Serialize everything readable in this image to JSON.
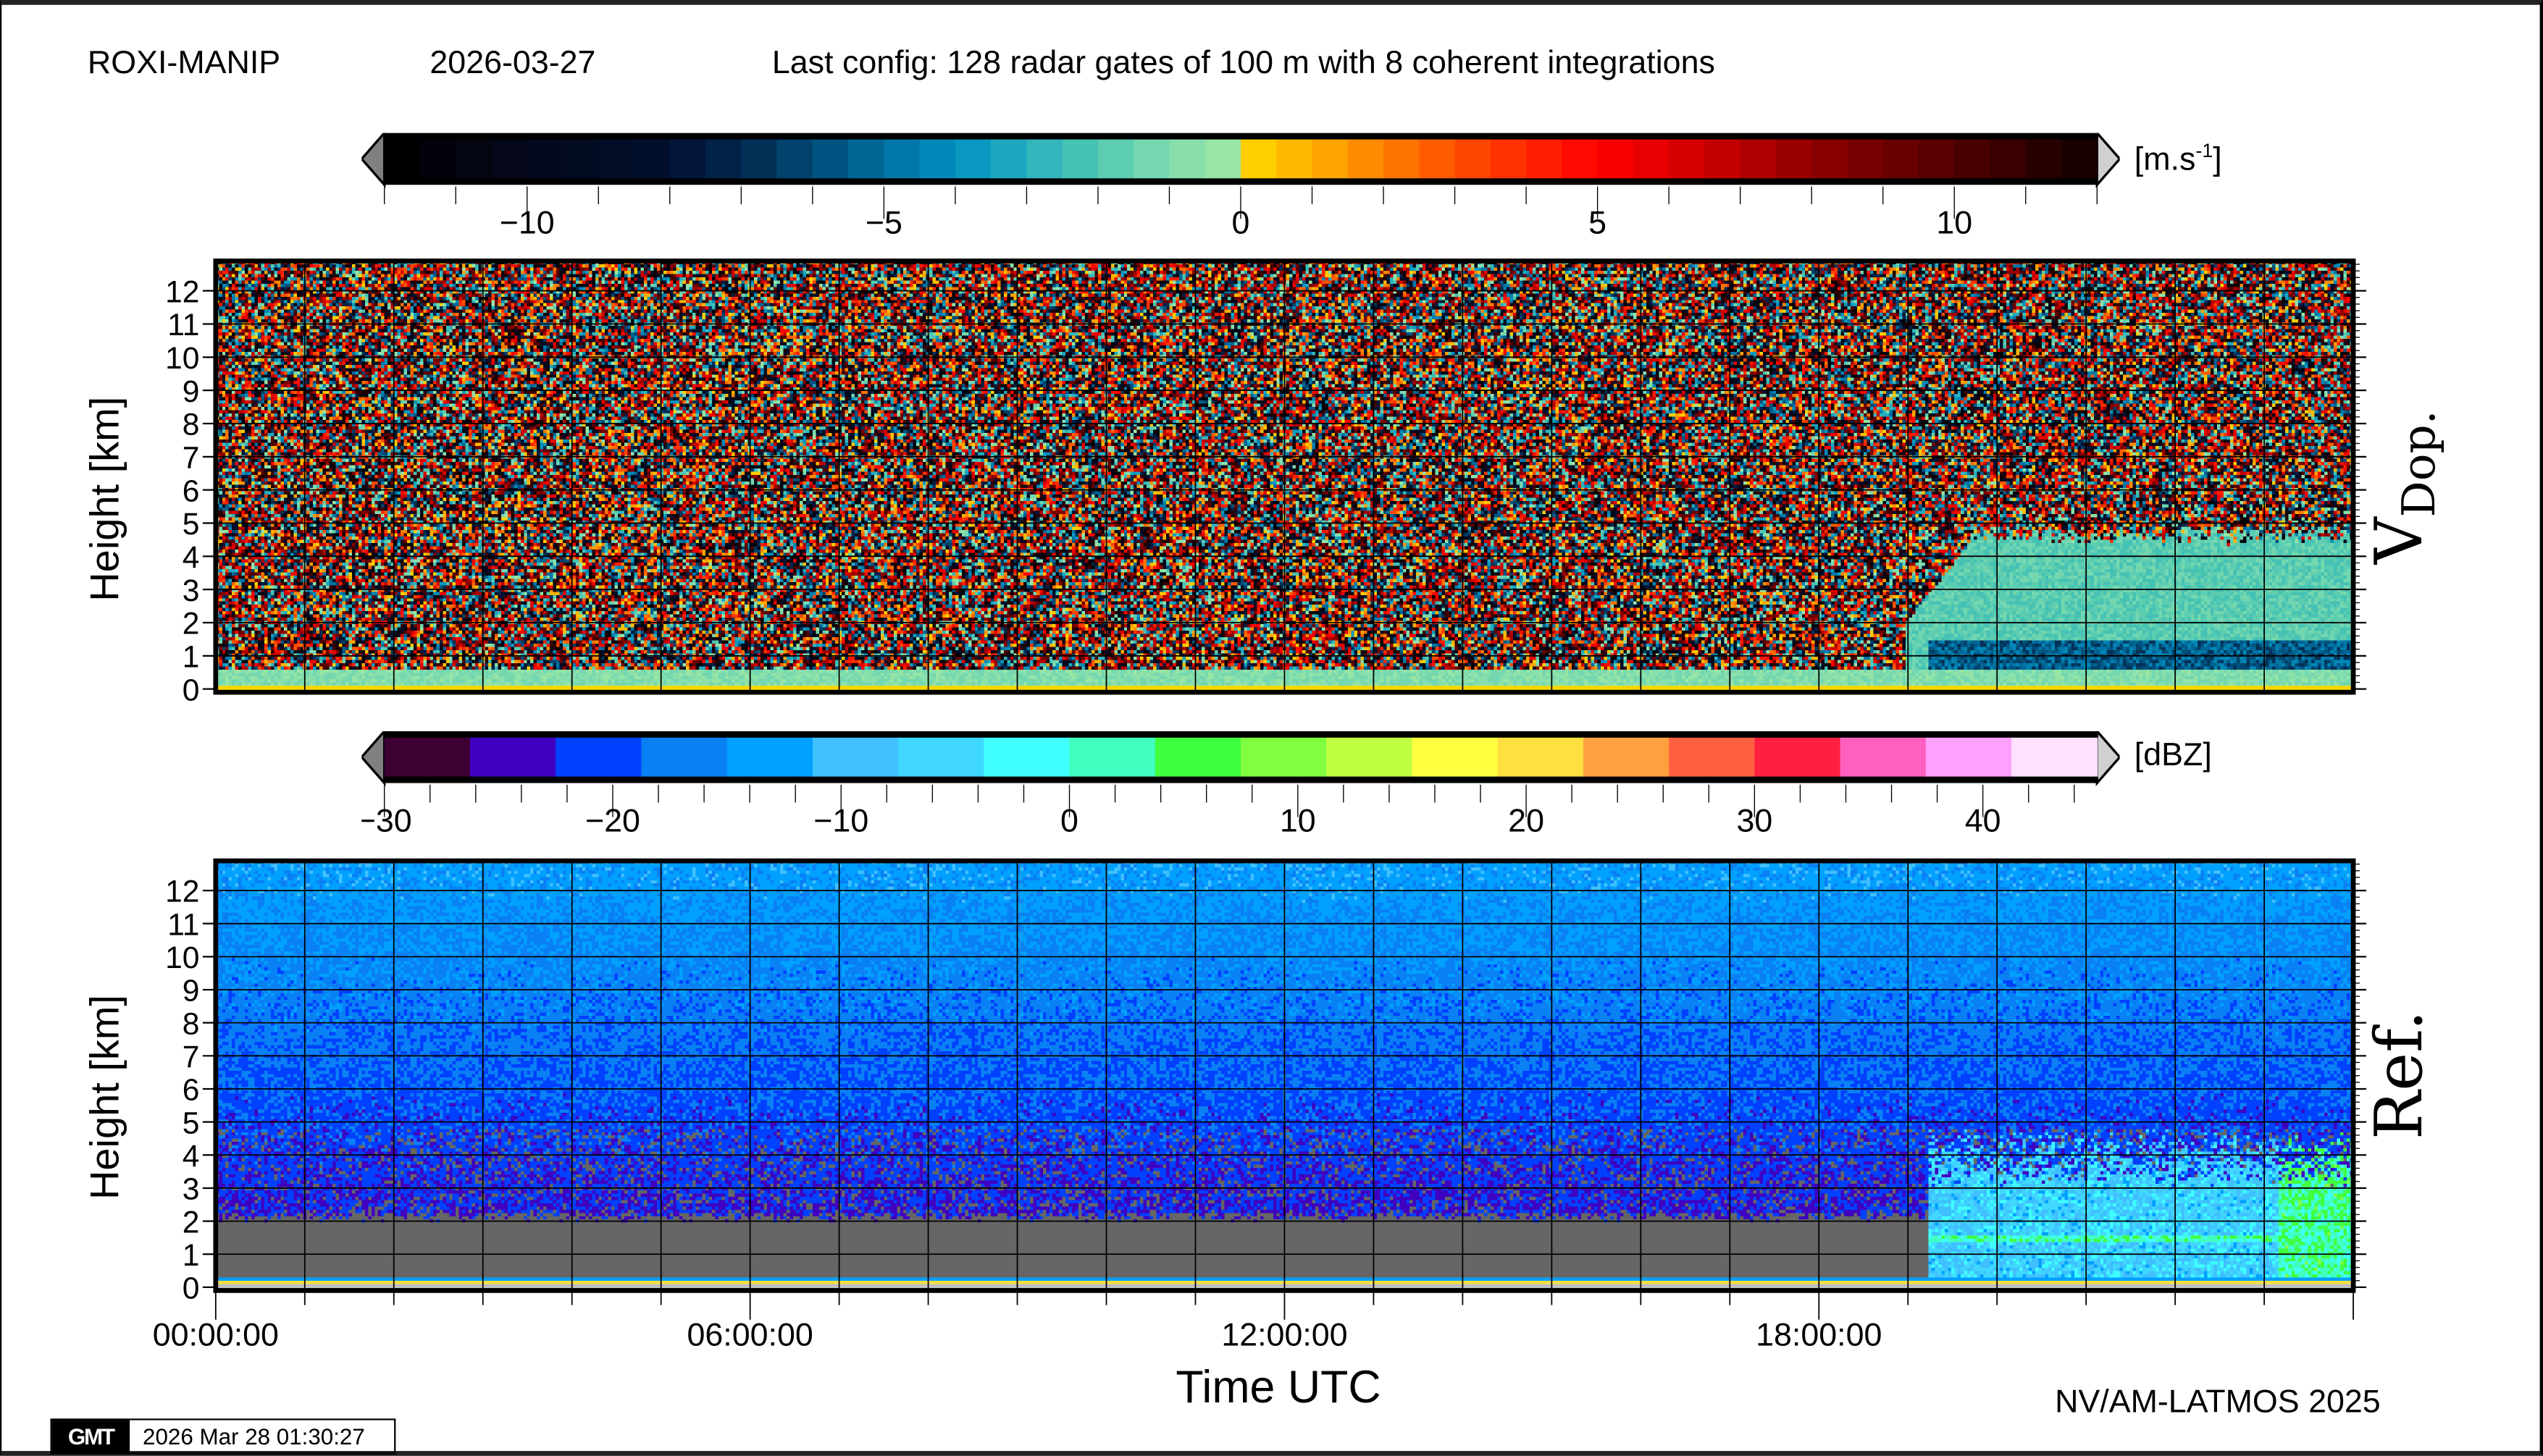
{
  "header": {
    "station": "ROXI-MANIP",
    "date": "2026-03-27",
    "config": "Last config: 128 radar gates of 100 m with 8 coherent integrations"
  },
  "chart_data": [
    {
      "type": "heatmap",
      "title_main": "V",
      "title_sub": "Dop.",
      "ylabel": "Height [km]",
      "xlabel": "",
      "xlim": [
        "00:00:00",
        "24:00:00"
      ],
      "ylim": [
        0,
        12.8
      ],
      "yticks": [
        "0",
        "1",
        "2",
        "3",
        "4",
        "5",
        "6",
        "7",
        "8",
        "9",
        "10",
        "11",
        "12"
      ],
      "grid": true,
      "colorbar": {
        "range": [
          -12,
          12
        ],
        "step": 0.5,
        "ticks": [
          -10,
          -5,
          0,
          5,
          10
        ],
        "tick_labels": [
          "−10",
          "−5",
          "0",
          "5",
          "10"
        ],
        "unit_base": "[m.s",
        "unit_sup": "-1",
        "unit_close": "]",
        "anchors": [
          [
            -12,
            "#000000"
          ],
          [
            -10,
            "#05081a"
          ],
          [
            -8,
            "#001030"
          ],
          [
            -7,
            "#02284e"
          ],
          [
            -5,
            "#006f9f"
          ],
          [
            -4,
            "#0090c0"
          ],
          [
            -3,
            "#28b0c0"
          ],
          [
            -2,
            "#50c8b0"
          ],
          [
            -1,
            "#80dcb0"
          ],
          [
            -0.01,
            "#a0e8a0"
          ],
          [
            0,
            "#ffd800"
          ],
          [
            1,
            "#ffb000"
          ],
          [
            2,
            "#ff8000"
          ],
          [
            3,
            "#ff5000"
          ],
          [
            4,
            "#ff2800"
          ],
          [
            5,
            "#ff0000"
          ],
          [
            6,
            "#e00000"
          ],
          [
            7,
            "#b80000"
          ],
          [
            8,
            "#900000"
          ],
          [
            9,
            "#700000"
          ],
          [
            10,
            "#500000"
          ],
          [
            11,
            "#300000"
          ],
          [
            12,
            "#100000"
          ]
        ],
        "under_color": "#808080",
        "over_color": "#d0d0d0"
      }
    },
    {
      "type": "heatmap",
      "title_main": "Ref.",
      "ylabel": "Height [km]",
      "xlabel": "Time UTC",
      "xlim": [
        "00:00:00",
        "24:00:00"
      ],
      "ylim": [
        0,
        12.8
      ],
      "yticks": [
        "0",
        "1",
        "2",
        "3",
        "4",
        "5",
        "6",
        "7",
        "8",
        "9",
        "10",
        "11",
        "12"
      ],
      "xticks": [
        "00:00:00",
        "06:00:00",
        "12:00:00",
        "18:00:00"
      ],
      "grid": true,
      "colorbar": {
        "range": [
          -30,
          45
        ],
        "step": 3.75,
        "ticks": [
          -30,
          -20,
          -10,
          0,
          10,
          20,
          30,
          40
        ],
        "tick_labels": [
          "−30",
          "−20",
          "−10",
          "0",
          "10",
          "20",
          "30",
          "40"
        ],
        "unit": "[dBZ]",
        "colors": [
          "#3d0033",
          "#3f00c0",
          "#0040ff",
          "#0a80f5",
          "#00a0ff",
          "#40c0ff",
          "#40d8ff",
          "#40ffff",
          "#40ffc0",
          "#40ff40",
          "#80ff40",
          "#c0ff40",
          "#ffff40",
          "#ffe040",
          "#ffa040",
          "#ff6040",
          "#ff2040",
          "#ff60c0",
          "#ffa0ff",
          "#ffe0ff"
        ],
        "under_color": "#808080",
        "over_color": "#d0d0d0",
        "nodata_color": "#666666"
      }
    }
  ],
  "footer": {
    "credit": "NV/AM-LATMOS 2025",
    "gmt_logo": "GMT",
    "timestamp": "2026 Mar 28 01:30:27"
  }
}
